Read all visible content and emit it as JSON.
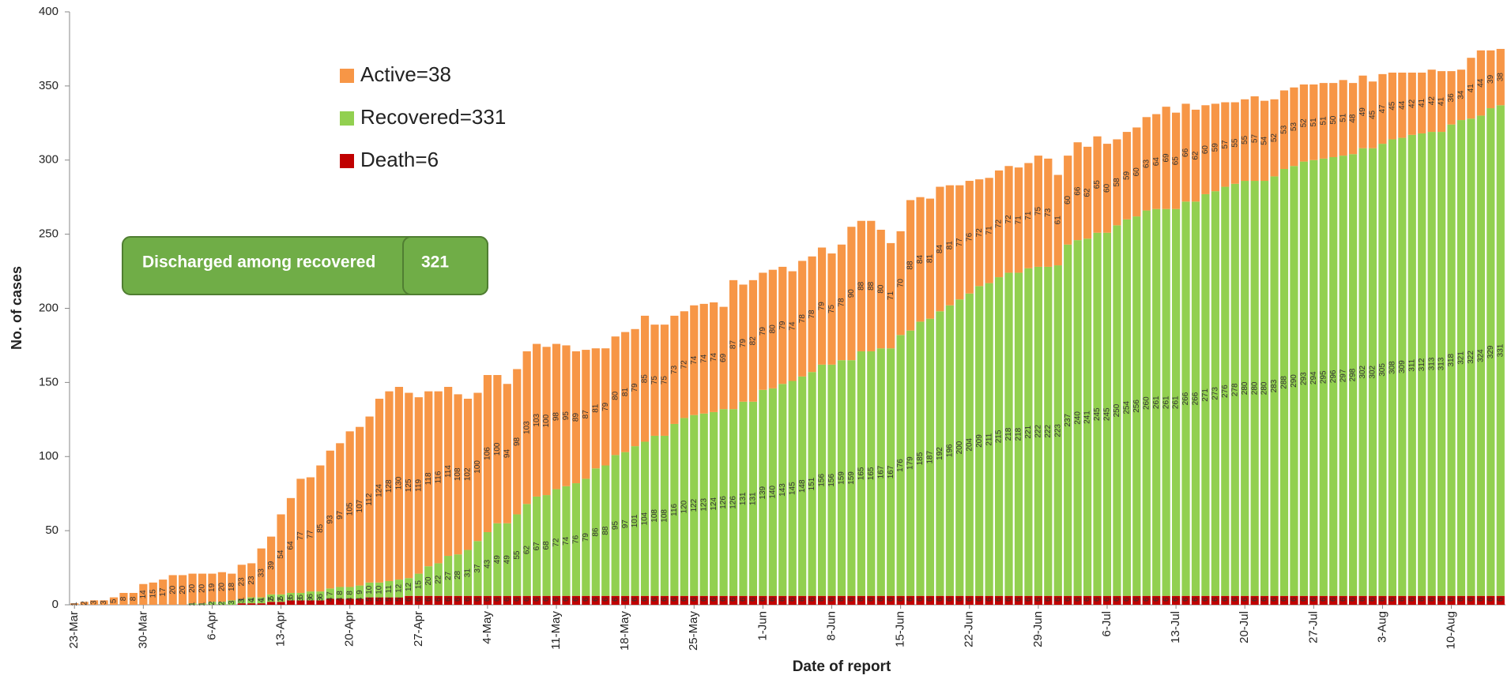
{
  "chart_data": {
    "type": "bar",
    "stacked": true,
    "y_label": "No. of cases",
    "x_label": "Date of report",
    "annotation": {
      "label": "Discharged among recovered",
      "value": 321
    },
    "ylim": [
      0,
      400
    ],
    "yticks": [
      0,
      50,
      100,
      150,
      200,
      250,
      300,
      350,
      400
    ],
    "grid": false,
    "categories": [
      "23-Mar",
      null,
      null,
      null,
      null,
      null,
      null,
      "30-Mar",
      null,
      null,
      null,
      null,
      null,
      null,
      "6-Apr",
      null,
      null,
      null,
      null,
      null,
      null,
      "13-Apr",
      null,
      null,
      null,
      null,
      null,
      null,
      "20-Apr",
      null,
      null,
      null,
      null,
      null,
      null,
      "27-Apr",
      null,
      null,
      null,
      null,
      null,
      null,
      "4-May",
      null,
      null,
      null,
      null,
      null,
      null,
      "11-May",
      null,
      null,
      null,
      null,
      null,
      null,
      "18-May",
      null,
      null,
      null,
      null,
      null,
      null,
      "25-May",
      null,
      null,
      null,
      null,
      null,
      null,
      "1-Jun",
      null,
      null,
      null,
      null,
      null,
      null,
      "8-Jun",
      null,
      null,
      null,
      null,
      null,
      null,
      "15-Jun",
      null,
      null,
      null,
      null,
      null,
      null,
      "22-Jun",
      null,
      null,
      null,
      null,
      null,
      null,
      "29-Jun",
      null,
      null,
      null,
      null,
      null,
      null,
      "6-Jul",
      null,
      null,
      null,
      null,
      null,
      null,
      "13-Jul",
      null,
      null,
      null,
      null,
      null,
      null,
      "20-Jul",
      null,
      null,
      null,
      null,
      null,
      null,
      "27-Jul",
      null,
      null,
      null,
      null,
      null,
      null,
      "3-Aug",
      null,
      null,
      null,
      null,
      null,
      null,
      "10-Aug",
      null,
      null,
      null,
      null,
      null
    ],
    "series": [
      {
        "name": "Death=6",
        "color": "#c00000",
        "values": [
          0,
          0,
          0,
          0,
          0,
          0,
          0,
          0,
          0,
          0,
          0,
          0,
          0,
          0,
          0,
          0,
          0,
          1,
          1,
          1,
          2,
          2,
          3,
          3,
          3,
          3,
          4,
          4,
          4,
          4,
          5,
          5,
          5,
          5,
          6,
          6,
          6,
          6,
          6,
          6,
          6,
          6,
          6,
          6,
          6,
          6,
          6,
          6,
          6,
          6,
          6,
          6,
          6,
          6,
          6,
          6,
          6,
          6,
          6,
          6,
          6,
          6,
          6,
          6,
          6,
          6,
          6,
          6,
          6,
          6,
          6,
          6,
          6,
          6,
          6,
          6,
          6,
          6,
          6,
          6,
          6,
          6,
          6,
          6,
          6,
          6,
          6,
          6,
          6,
          6,
          6,
          6,
          6,
          6,
          6,
          6,
          6,
          6,
          6,
          6,
          6,
          6,
          6,
          6,
          6,
          6,
          6,
          6,
          6,
          6,
          6,
          6,
          6,
          6,
          6,
          6,
          6,
          6,
          6,
          6,
          6,
          6,
          6,
          6,
          6,
          6,
          6,
          6,
          6,
          6,
          6,
          6,
          6,
          6,
          6,
          6,
          6,
          6,
          6,
          6,
          6,
          6,
          6,
          6,
          6,
          6
        ]
      },
      {
        "name": "Recovered=331",
        "color": "#92d050",
        "values": [
          0,
          0,
          0,
          0,
          0,
          0,
          0,
          0,
          0,
          0,
          0,
          0,
          1,
          1,
          2,
          2,
          3,
          3,
          4,
          4,
          5,
          5,
          5,
          5,
          6,
          6,
          7,
          8,
          8,
          9,
          10,
          10,
          11,
          12,
          12,
          15,
          20,
          22,
          27,
          28,
          31,
          37,
          43,
          49,
          49,
          55,
          62,
          67,
          68,
          72,
          74,
          76,
          79,
          86,
          88,
          95,
          97,
          101,
          104,
          108,
          108,
          116,
          120,
          122,
          123,
          124,
          126,
          126,
          131,
          131,
          139,
          140,
          143,
          145,
          148,
          151,
          156,
          156,
          159,
          159,
          165,
          165,
          167,
          167,
          176,
          179,
          185,
          187,
          192,
          196,
          200,
          204,
          209,
          211,
          215,
          218,
          218,
          221,
          222,
          222,
          223,
          237,
          240,
          241,
          245,
          245,
          250,
          254,
          256,
          260,
          261,
          261,
          261,
          266,
          266,
          271,
          273,
          276,
          278,
          280,
          280,
          280,
          283,
          288,
          290,
          293,
          294,
          295,
          296,
          297,
          298,
          302,
          302,
          305,
          308,
          309,
          311,
          312,
          313,
          313,
          318,
          321,
          322,
          324,
          329,
          331
        ]
      },
      {
        "name": "Active=38",
        "color": "#f79646",
        "values": [
          1,
          2,
          3,
          3,
          5,
          8,
          8,
          14,
          15,
          17,
          20,
          20,
          20,
          20,
          19,
          20,
          18,
          23,
          23,
          33,
          39,
          54,
          64,
          77,
          77,
          85,
          93,
          97,
          105,
          107,
          112,
          124,
          128,
          130,
          125,
          119,
          118,
          116,
          114,
          108,
          102,
          100,
          106,
          100,
          94,
          98,
          103,
          103,
          100,
          98,
          95,
          89,
          87,
          81,
          79,
          80,
          81,
          79,
          85,
          75,
          75,
          73,
          72,
          74,
          74,
          74,
          69,
          87,
          79,
          82,
          79,
          80,
          79,
          74,
          78,
          78,
          79,
          75,
          78,
          90,
          88,
          88,
          80,
          71,
          70,
          88,
          84,
          81,
          84,
          81,
          77,
          76,
          72,
          71,
          72,
          72,
          71,
          71,
          75,
          73,
          61,
          60,
          66,
          62,
          65,
          60,
          58,
          59,
          60,
          63,
          64,
          69,
          65,
          66,
          62,
          60,
          59,
          57,
          55,
          55,
          57,
          54,
          52,
          53,
          53,
          52,
          51,
          51,
          50,
          51,
          48,
          49,
          45,
          47,
          45,
          44,
          42,
          41,
          42,
          41,
          36,
          34,
          41,
          44,
          39,
          38
        ]
      }
    ]
  }
}
